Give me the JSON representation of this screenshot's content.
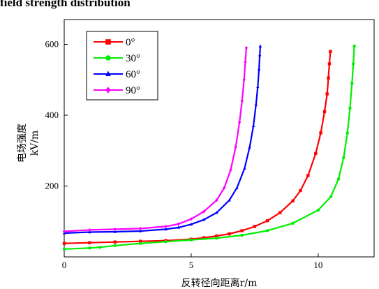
{
  "caption": "field strength distribution",
  "chart_data": {
    "type": "line",
    "xlabel": "反转径向距离r/m",
    "ylabel_line1": "电场强度",
    "ylabel_line2": "kV/m",
    "xlim": [
      0,
      12.2
    ],
    "ylim": [
      0,
      670
    ],
    "xticks": [
      0,
      5,
      10
    ],
    "yticks": [
      200,
      400,
      600
    ],
    "legend_position": "top-left",
    "series": [
      {
        "name": "0°",
        "color": "#ff0000",
        "marker": "square",
        "x": [
          0,
          1,
          2,
          3,
          4,
          5,
          5.5,
          6,
          6.5,
          7,
          7.5,
          8,
          8.5,
          9,
          9.3,
          9.6,
          9.9,
          10.1,
          10.25,
          10.35,
          10.4,
          10.44,
          10.48
        ],
        "y": [
          38,
          40,
          42,
          44,
          46,
          50,
          54,
          59,
          65,
          74,
          86,
          102,
          125,
          158,
          187,
          230,
          292,
          350,
          410,
          460,
          505,
          545,
          580
        ]
      },
      {
        "name": "30°",
        "color": "#00ee00",
        "marker": "circle",
        "x": [
          0,
          1,
          1.4,
          2,
          3,
          4,
          5,
          6,
          7,
          8,
          9,
          10,
          10.5,
          10.8,
          11,
          11.15,
          11.25,
          11.33,
          11.38,
          11.42
        ],
        "y": [
          22,
          25,
          27,
          32,
          38,
          43,
          48,
          53,
          61,
          74,
          95,
          132,
          170,
          220,
          280,
          350,
          420,
          490,
          545,
          595
        ]
      },
      {
        "name": "60°",
        "color": "#0000ff",
        "marker": "triangle",
        "x": [
          0,
          1,
          2,
          3,
          4,
          4.5,
          5,
          5.5,
          6,
          6.5,
          6.8,
          7.1,
          7.3,
          7.45,
          7.55,
          7.62,
          7.67,
          7.7,
          7.72
        ],
        "y": [
          67,
          70,
          71,
          73,
          78,
          83,
          92,
          105,
          125,
          160,
          195,
          250,
          310,
          370,
          430,
          480,
          530,
          570,
          595
        ]
      },
      {
        "name": "90°",
        "color": "#ff00ff",
        "marker": "diamond",
        "x": [
          0,
          1,
          2,
          3,
          4,
          4.5,
          5,
          5.5,
          6,
          6.3,
          6.55,
          6.75,
          6.9,
          7.0,
          7.08,
          7.13,
          7.17
        ],
        "y": [
          72,
          76,
          78,
          80,
          86,
          93,
          107,
          128,
          160,
          195,
          245,
          310,
          380,
          440,
          500,
          550,
          590
        ]
      }
    ]
  }
}
